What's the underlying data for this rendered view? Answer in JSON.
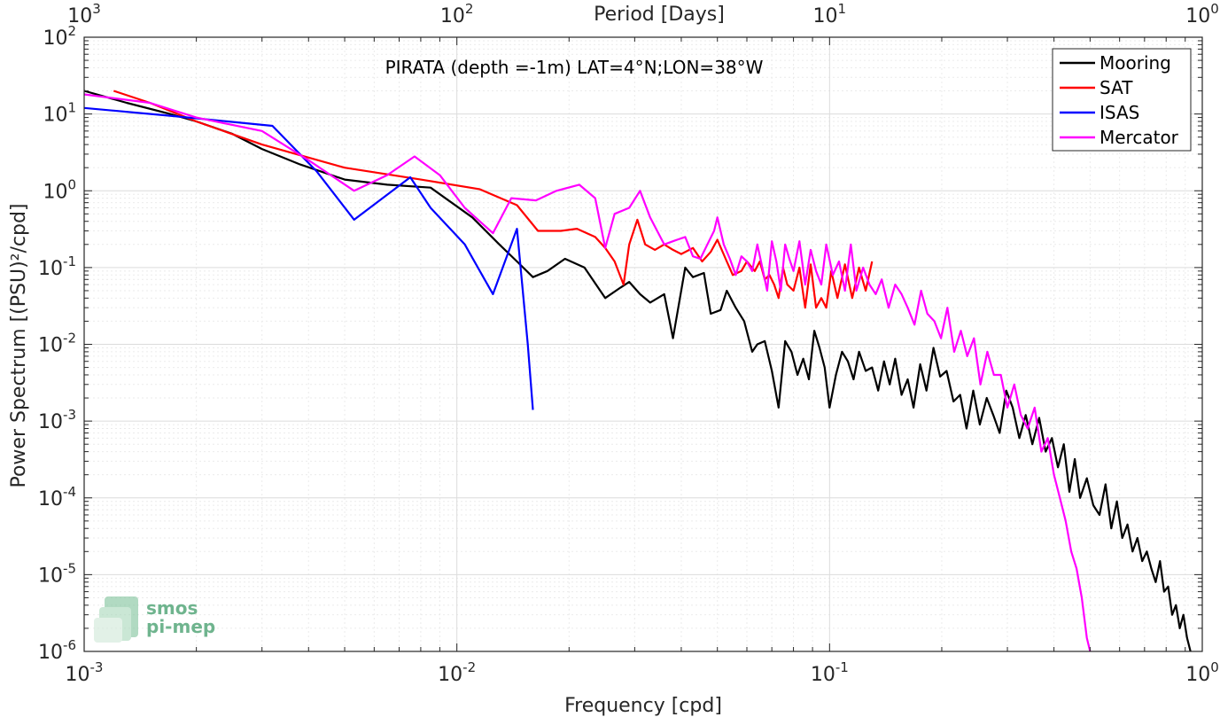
{
  "chart_data": {
    "type": "line",
    "title": "PIRATA (depth =-1m) LAT=4°N;LON=38°W",
    "xlabel": "Frequency [cpd]",
    "ylabel": "Power Spectrum [(PSU)²/cpd]",
    "x2label": "Period [Days]",
    "xscale": "log",
    "yscale": "log",
    "xlim": [
      0.001,
      1
    ],
    "ylim": [
      1e-06,
      100
    ],
    "grid": true,
    "legend_position": "top-right",
    "x_ticks": [
      {
        "value": 0.001,
        "base": "10",
        "exp": "-3"
      },
      {
        "value": 0.01,
        "base": "10",
        "exp": "-2"
      },
      {
        "value": 0.1,
        "base": "10",
        "exp": "-1"
      },
      {
        "value": 1,
        "base": "10",
        "exp": "0"
      }
    ],
    "y_ticks": [
      {
        "value": 100,
        "base": "10",
        "exp": "2"
      },
      {
        "value": 10,
        "base": "10",
        "exp": "1"
      },
      {
        "value": 1,
        "base": "10",
        "exp": "0"
      },
      {
        "value": 0.1,
        "base": "10",
        "exp": "-1"
      },
      {
        "value": 0.01,
        "base": "10",
        "exp": "-2"
      },
      {
        "value": 0.001,
        "base": "10",
        "exp": "-3"
      },
      {
        "value": 0.0001,
        "base": "10",
        "exp": "-4"
      },
      {
        "value": 1e-05,
        "base": "10",
        "exp": "-5"
      },
      {
        "value": 1e-06,
        "base": "10",
        "exp": "-6"
      }
    ],
    "x2_ticks": [
      {
        "value": 1000,
        "base": "10",
        "exp": "3"
      },
      {
        "value": 100,
        "base": "10",
        "exp": "2"
      },
      {
        "value": 10,
        "base": "10",
        "exp": "1"
      },
      {
        "value": 1,
        "base": "10",
        "exp": "0"
      }
    ],
    "series": [
      {
        "name": "Mooring",
        "color": "#000000",
        "x": [
          0.001,
          0.0013,
          0.0017,
          0.002,
          0.0025,
          0.003,
          0.0038,
          0.005,
          0.0065,
          0.0085,
          0.011,
          0.013,
          0.0145,
          0.016,
          0.0175,
          0.0195,
          0.022,
          0.025,
          0.0275,
          0.029,
          0.031,
          0.033,
          0.036,
          0.038,
          0.041,
          0.043,
          0.046,
          0.048,
          0.051,
          0.053,
          0.056,
          0.059,
          0.062,
          0.064,
          0.067,
          0.07,
          0.073,
          0.076,
          0.079,
          0.082,
          0.085,
          0.088,
          0.091,
          0.094,
          0.097,
          0.1,
          0.104,
          0.108,
          0.112,
          0.116,
          0.12,
          0.125,
          0.13,
          0.135,
          0.14,
          0.145,
          0.15,
          0.156,
          0.162,
          0.168,
          0.175,
          0.182,
          0.19,
          0.198,
          0.206,
          0.215,
          0.224,
          0.233,
          0.243,
          0.253,
          0.264,
          0.275,
          0.286,
          0.298,
          0.31,
          0.323,
          0.336,
          0.35,
          0.365,
          0.38,
          0.395,
          0.41,
          0.425,
          0.44,
          0.455,
          0.47,
          0.49,
          0.51,
          0.53,
          0.55,
          0.57,
          0.59,
          0.61,
          0.63,
          0.65,
          0.67,
          0.69,
          0.71,
          0.73,
          0.75,
          0.77,
          0.79,
          0.81,
          0.83,
          0.85,
          0.87,
          0.89,
          0.91,
          0.93
        ],
        "values": [
          20,
          14,
          10,
          8,
          5.5,
          3.5,
          2.2,
          1.4,
          1.2,
          1.1,
          0.45,
          0.2,
          0.12,
          0.075,
          0.09,
          0.13,
          0.1,
          0.04,
          0.055,
          0.065,
          0.045,
          0.035,
          0.045,
          0.012,
          0.1,
          0.075,
          0.085,
          0.025,
          0.028,
          0.05,
          0.03,
          0.02,
          0.008,
          0.01,
          0.011,
          0.0045,
          0.0015,
          0.011,
          0.008,
          0.004,
          0.0065,
          0.0035,
          0.015,
          0.009,
          0.005,
          0.0015,
          0.004,
          0.008,
          0.006,
          0.0035,
          0.008,
          0.0045,
          0.005,
          0.0025,
          0.006,
          0.003,
          0.0065,
          0.0022,
          0.0035,
          0.0015,
          0.0055,
          0.0025,
          0.009,
          0.0038,
          0.0045,
          0.0018,
          0.0022,
          0.0008,
          0.0025,
          0.0009,
          0.002,
          0.0012,
          0.0007,
          0.0025,
          0.0015,
          0.0006,
          0.0012,
          0.0005,
          0.0011,
          0.0004,
          0.0006,
          0.00025,
          0.0005,
          0.00012,
          0.00032,
          0.0001,
          0.00018,
          8e-05,
          6e-05,
          0.00015,
          4e-05,
          9e-05,
          3e-05,
          4.5e-05,
          2e-05,
          3e-05,
          1.5e-05,
          2e-05,
          1.2e-05,
          8e-06,
          1.5e-05,
          6e-06,
          7e-06,
          3e-06,
          4e-06,
          2e-06,
          3e-06,
          1.5e-06,
          1e-06
        ]
      },
      {
        "name": "SAT",
        "color": "#ff0000",
        "x": [
          0.0012,
          0.0015,
          0.002,
          0.003,
          0.005,
          0.008,
          0.0115,
          0.0145,
          0.0165,
          0.019,
          0.021,
          0.0235,
          0.025,
          0.0265,
          0.028,
          0.029,
          0.0305,
          0.032,
          0.034,
          0.036,
          0.038,
          0.04,
          0.043,
          0.0455,
          0.048,
          0.05,
          0.053,
          0.055,
          0.058,
          0.06,
          0.063,
          0.065,
          0.067,
          0.069,
          0.071,
          0.073,
          0.075,
          0.077,
          0.08,
          0.083,
          0.086,
          0.089,
          0.092,
          0.095,
          0.098,
          0.101,
          0.105,
          0.11,
          0.115,
          0.12,
          0.125,
          0.13
        ],
        "values": [
          20,
          14,
          8,
          4,
          2,
          1.4,
          1.05,
          0.65,
          0.3,
          0.3,
          0.32,
          0.25,
          0.18,
          0.12,
          0.06,
          0.2,
          0.42,
          0.2,
          0.17,
          0.2,
          0.17,
          0.15,
          0.18,
          0.12,
          0.16,
          0.23,
          0.12,
          0.08,
          0.09,
          0.12,
          0.09,
          0.12,
          0.07,
          0.08,
          0.06,
          0.04,
          0.1,
          0.06,
          0.05,
          0.1,
          0.03,
          0.11,
          0.03,
          0.04,
          0.03,
          0.09,
          0.04,
          0.11,
          0.04,
          0.1,
          0.05,
          0.12
        ]
      },
      {
        "name": "ISAS",
        "color": "#0000ff",
        "x": [
          0.001,
          0.0017,
          0.0032,
          0.0042,
          0.0053,
          0.0075,
          0.0085,
          0.0105,
          0.0125,
          0.0145,
          0.0155,
          0.016
        ],
        "values": [
          12,
          9.5,
          7,
          1.8,
          0.42,
          1.5,
          0.6,
          0.2,
          0.045,
          0.32,
          0.01,
          0.0014
        ]
      },
      {
        "name": "Mercator",
        "color": "#ff00ff",
        "x": [
          0.001,
          0.0015,
          0.002,
          0.003,
          0.004,
          0.0053,
          0.0065,
          0.0077,
          0.009,
          0.0105,
          0.0125,
          0.014,
          0.0163,
          0.0185,
          0.0213,
          0.0235,
          0.025,
          0.0265,
          0.029,
          0.031,
          0.033,
          0.036,
          0.039,
          0.041,
          0.043,
          0.045,
          0.047,
          0.049,
          0.05,
          0.052,
          0.054,
          0.056,
          0.058,
          0.06,
          0.062,
          0.064,
          0.066,
          0.068,
          0.07,
          0.072,
          0.074,
          0.076,
          0.078,
          0.08,
          0.083,
          0.086,
          0.089,
          0.092,
          0.095,
          0.098,
          0.102,
          0.106,
          0.11,
          0.114,
          0.118,
          0.123,
          0.128,
          0.133,
          0.138,
          0.144,
          0.15,
          0.156,
          0.162,
          0.169,
          0.176,
          0.183,
          0.191,
          0.199,
          0.207,
          0.216,
          0.225,
          0.234,
          0.244,
          0.254,
          0.265,
          0.276,
          0.288,
          0.3,
          0.313,
          0.326,
          0.34,
          0.355,
          0.37,
          0.385,
          0.4,
          0.415,
          0.43,
          0.445,
          0.46,
          0.475,
          0.49,
          0.5
        ],
        "values": [
          18,
          14,
          9,
          6,
          2.5,
          1.0,
          1.6,
          2.8,
          1.6,
          0.6,
          0.28,
          0.8,
          0.75,
          1.0,
          1.2,
          0.8,
          0.18,
          0.5,
          0.6,
          1.0,
          0.45,
          0.2,
          0.23,
          0.25,
          0.14,
          0.13,
          0.2,
          0.3,
          0.45,
          0.2,
          0.13,
          0.08,
          0.14,
          0.12,
          0.09,
          0.2,
          0.1,
          0.05,
          0.22,
          0.12,
          0.05,
          0.2,
          0.13,
          0.09,
          0.22,
          0.06,
          0.17,
          0.09,
          0.06,
          0.2,
          0.08,
          0.12,
          0.05,
          0.2,
          0.05,
          0.1,
          0.06,
          0.045,
          0.07,
          0.03,
          0.06,
          0.045,
          0.03,
          0.018,
          0.05,
          0.025,
          0.02,
          0.012,
          0.03,
          0.008,
          0.015,
          0.007,
          0.012,
          0.003,
          0.008,
          0.004,
          0.004,
          0.0015,
          0.003,
          0.0012,
          0.0008,
          0.0015,
          0.0004,
          0.0006,
          0.0002,
          0.0001,
          5e-05,
          2e-05,
          1.2e-05,
          5e-06,
          1.5e-06,
          1e-06
        ]
      }
    ]
  },
  "watermark": {
    "line1": "smos",
    "line2": "pi-mep"
  }
}
